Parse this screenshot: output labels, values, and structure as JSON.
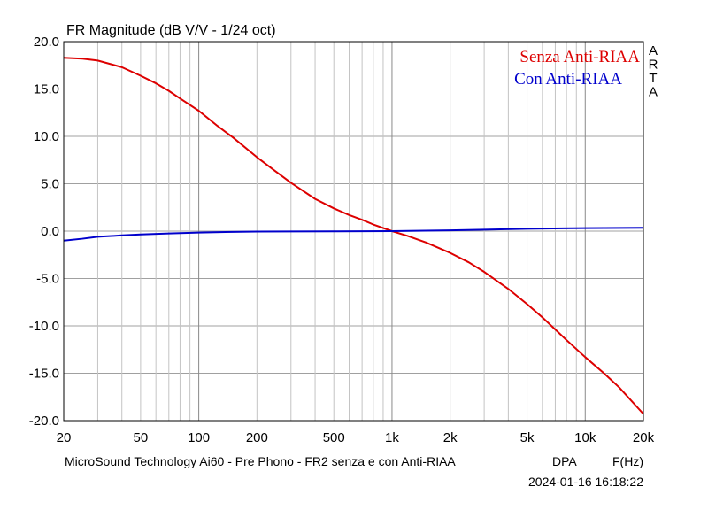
{
  "chart_data": {
    "type": "line",
    "title": "FR Magnitude (dB V/V - 1/24 oct)",
    "xlabel": "F(Hz)",
    "ylabel": "",
    "x_scale": "log",
    "xlim": [
      20,
      20000
    ],
    "ylim": [
      -20,
      20
    ],
    "grid": true,
    "legend_position": "top-right",
    "x_ticks": [
      {
        "value": 20,
        "label": "20"
      },
      {
        "value": 50,
        "label": "50"
      },
      {
        "value": 100,
        "label": "100"
      },
      {
        "value": 200,
        "label": "200"
      },
      {
        "value": 500,
        "label": "500"
      },
      {
        "value": 1000,
        "label": "1k"
      },
      {
        "value": 2000,
        "label": "2k"
      },
      {
        "value": 5000,
        "label": "5k"
      },
      {
        "value": 10000,
        "label": "10k"
      },
      {
        "value": 20000,
        "label": "20k"
      }
    ],
    "y_ticks": [
      {
        "value": 20,
        "label": "20.0"
      },
      {
        "value": 15,
        "label": "15.0"
      },
      {
        "value": 10,
        "label": "10.0"
      },
      {
        "value": 5,
        "label": "5.0"
      },
      {
        "value": 0,
        "label": "0.0"
      },
      {
        "value": -5,
        "label": "-5.0"
      },
      {
        "value": -10,
        "label": "-10.0"
      },
      {
        "value": -15,
        "label": "-15.0"
      },
      {
        "value": -20,
        "label": "-20.0"
      }
    ],
    "series": [
      {
        "name": "Senza Anti-RIAA",
        "color": "#dd0000",
        "points": [
          [
            20,
            18.3
          ],
          [
            25,
            18.2
          ],
          [
            30,
            18.0
          ],
          [
            40,
            17.3
          ],
          [
            50,
            16.4
          ],
          [
            60,
            15.6
          ],
          [
            70,
            14.8
          ],
          [
            80,
            14.0
          ],
          [
            100,
            12.7
          ],
          [
            125,
            11.1
          ],
          [
            150,
            9.9
          ],
          [
            200,
            7.8
          ],
          [
            250,
            6.3
          ],
          [
            300,
            5.1
          ],
          [
            400,
            3.4
          ],
          [
            500,
            2.4
          ],
          [
            600,
            1.7
          ],
          [
            700,
            1.2
          ],
          [
            800,
            0.7
          ],
          [
            1000,
            0.0
          ],
          [
            1200,
            -0.5
          ],
          [
            1500,
            -1.2
          ],
          [
            2000,
            -2.3
          ],
          [
            2500,
            -3.3
          ],
          [
            3000,
            -4.3
          ],
          [
            4000,
            -6.1
          ],
          [
            5000,
            -7.7
          ],
          [
            6000,
            -9.1
          ],
          [
            8000,
            -11.5
          ],
          [
            10000,
            -13.3
          ],
          [
            12500,
            -15.0
          ],
          [
            15000,
            -16.5
          ],
          [
            20000,
            -19.3
          ]
        ]
      },
      {
        "name": "Con Anti-RIAA",
        "color": "#0000cc",
        "points": [
          [
            20,
            -1.0
          ],
          [
            25,
            -0.8
          ],
          [
            30,
            -0.6
          ],
          [
            40,
            -0.45
          ],
          [
            50,
            -0.35
          ],
          [
            70,
            -0.25
          ],
          [
            100,
            -0.15
          ],
          [
            150,
            -0.08
          ],
          [
            200,
            -0.05
          ],
          [
            300,
            -0.03
          ],
          [
            500,
            -0.02
          ],
          [
            1000,
            0.0
          ],
          [
            2000,
            0.08
          ],
          [
            3000,
            0.15
          ],
          [
            5000,
            0.25
          ],
          [
            10000,
            0.32
          ],
          [
            20000,
            0.35
          ]
        ]
      }
    ]
  },
  "brand": "ARTA",
  "footer": {
    "caption": "MicroSound Technology Ai60 - Pre Phono - FR2 senza e con Anti-RIAA",
    "mode": "DPA",
    "timestamp": "2024-01-16  16:18:22"
  }
}
